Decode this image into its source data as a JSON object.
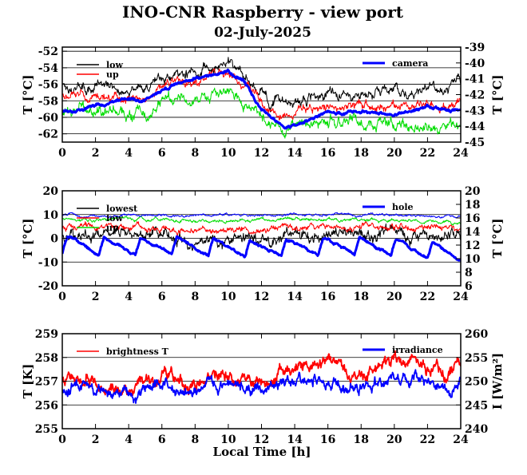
{
  "title": "INO-CNR Raspberry - view port",
  "subtitle": "02-July-2025",
  "xlabel": "Local Time [h]",
  "colors": {
    "black": "#000000",
    "red": "#ff0000",
    "green": "#00dd00",
    "blue": "#0000ff"
  },
  "chart_data": [
    {
      "type": "line",
      "xlim": [
        0,
        24
      ],
      "xticks": [
        "0",
        "2",
        "4",
        "6",
        "8",
        "10",
        "12",
        "14",
        "16",
        "18",
        "20",
        "22",
        "24"
      ],
      "ylabel": "T [°C]",
      "ylim": [
        -63,
        -51.5
      ],
      "yticks": [
        "-62",
        "-60",
        "-58",
        "-56",
        "-54",
        "-52"
      ],
      "y2label": "T [°C]",
      "y2lim": [
        -45,
        -39
      ],
      "y2ticks": [
        "-45",
        "-44",
        "-43",
        "-42",
        "-41",
        "-40",
        "-39"
      ],
      "grid": true,
      "series": [
        {
          "name": "low",
          "color": "black",
          "axis": "left",
          "width": 1,
          "noise": 0.7,
          "x": [
            0,
            1,
            2,
            3,
            4,
            5,
            6,
            7,
            8,
            9,
            10,
            11,
            12,
            12.5,
            13,
            13.5,
            14,
            15,
            16,
            17,
            18,
            19,
            20,
            21,
            22,
            23,
            24
          ],
          "y": [
            -56,
            -56.5,
            -56.2,
            -56.3,
            -56.5,
            -56.5,
            -55.5,
            -54.5,
            -54.3,
            -53.8,
            -53.5,
            -55,
            -56.5,
            -57.8,
            -58,
            -58.3,
            -58,
            -57.5,
            -57,
            -57,
            -57.2,
            -57,
            -57,
            -56.8,
            -56.5,
            -56.5,
            -56
          ]
        },
        {
          "name": "up",
          "color": "red",
          "axis": "left",
          "width": 1,
          "noise": 0.6,
          "x": [
            0,
            1,
            2,
            3,
            4,
            5,
            6,
            7,
            8,
            9,
            10,
            11,
            12,
            12.5,
            13,
            13.5,
            14,
            15,
            16,
            17,
            18,
            19,
            20,
            21,
            22,
            23,
            24
          ],
          "y": [
            -57.5,
            -57.5,
            -57.5,
            -57.8,
            -58,
            -58,
            -56.5,
            -55.5,
            -55.5,
            -55,
            -54.8,
            -56,
            -58,
            -59,
            -59.5,
            -59.8,
            -59.5,
            -59,
            -58.5,
            -58.5,
            -58.5,
            -58.7,
            -58.5,
            -58.5,
            -58.3,
            -58.5,
            -58.3
          ]
        },
        {
          "name": "",
          "color": "green",
          "axis": "left",
          "width": 1,
          "noise": 0.8,
          "x": [
            0,
            1,
            2,
            3,
            4,
            5,
            6,
            7,
            8,
            9,
            10,
            11,
            12,
            12.5,
            13,
            13.5,
            14,
            15,
            16,
            17,
            18,
            19,
            20,
            21,
            22,
            23,
            24
          ],
          "y": [
            -59.3,
            -59.3,
            -59,
            -59.3,
            -59.5,
            -59.7,
            -58.5,
            -57.5,
            -57.8,
            -57.5,
            -57,
            -58.3,
            -59.5,
            -60.5,
            -61,
            -61.5,
            -61.3,
            -60.8,
            -60.3,
            -60.5,
            -60.5,
            -60.8,
            -60.8,
            -60.7,
            -60.8,
            -61.3,
            -61
          ]
        },
        {
          "name": "camera",
          "color": "blue",
          "axis": "right",
          "width": 3,
          "noise": 0.1,
          "x": [
            0,
            1,
            2,
            3,
            4,
            5,
            6,
            7,
            8,
            9,
            10,
            11,
            12,
            13,
            13.5,
            14,
            15,
            16,
            17,
            18,
            19,
            20,
            21,
            22,
            23,
            24
          ],
          "y": [
            -43.1,
            -42.9,
            -42.7,
            -42.5,
            -42.3,
            -42.4,
            -41.8,
            -41.2,
            -41.0,
            -40.7,
            -40.5,
            -41.3,
            -43.0,
            -43.9,
            -44.1,
            -44.0,
            -43.5,
            -43.1,
            -43.2,
            -43.0,
            -43.2,
            -43.3,
            -43.0,
            -42.8,
            -43.0,
            -43.0
          ]
        }
      ],
      "legend": [
        {
          "label": "low",
          "color": "black",
          "position": "top-left"
        },
        {
          "label": "up",
          "color": "red",
          "position": "top-left"
        },
        {
          "label": "camera",
          "color": "blue",
          "position": "top-right"
        }
      ]
    },
    {
      "type": "line",
      "xlim": [
        0,
        24
      ],
      "xticks": [
        "0",
        "2",
        "4",
        "6",
        "8",
        "10",
        "12",
        "14",
        "16",
        "18",
        "20",
        "22",
        "24"
      ],
      "ylabel": "T [°C]",
      "ylim": [
        -20,
        20
      ],
      "yticks": [
        "-20",
        "-10",
        "0",
        "10",
        "20"
      ],
      "y2label": "T [°C]",
      "y2lim": [
        6,
        20
      ],
      "y2ticks": [
        "6",
        "8",
        "10",
        "12",
        "14",
        "16",
        "18",
        "20"
      ],
      "grid": true,
      "series": [
        {
          "name": "lowest",
          "color": "black",
          "axis": "left",
          "width": 1,
          "noise": 2.8,
          "cycle": 0,
          "x": [
            0,
            2,
            4,
            6,
            7,
            8,
            9,
            10,
            11,
            12,
            14,
            16,
            18,
            20,
            22,
            24
          ],
          "y": [
            3,
            1,
            2,
            1,
            -1,
            -3,
            -2,
            -2,
            -1,
            -1,
            1,
            1,
            1,
            1,
            1,
            0
          ]
        },
        {
          "name": "low",
          "color": "red",
          "axis": "left",
          "width": 1,
          "noise": 1.5,
          "cycle": 0,
          "x": [
            0,
            2,
            4,
            6,
            8,
            10,
            12,
            14,
            16,
            18,
            20,
            22,
            24
          ],
          "y": [
            5,
            4.5,
            4.5,
            4,
            3.5,
            3.5,
            4,
            5,
            5,
            5,
            4.5,
            5,
            3.5
          ]
        },
        {
          "name": "up",
          "color": "green",
          "axis": "left",
          "width": 1,
          "noise": 0.8,
          "cycle": 0,
          "x": [
            0,
            2,
            4,
            6,
            8,
            10,
            12,
            14,
            16,
            18,
            20,
            22,
            24
          ],
          "y": [
            8.5,
            8,
            8.5,
            8,
            7.5,
            7.5,
            7.5,
            8,
            8,
            8,
            7.5,
            7.5,
            6.5
          ]
        },
        {
          "name": "",
          "color": "blue",
          "axis": "left",
          "width": 1,
          "noise": 0.6,
          "cycle": 0,
          "x": [
            0,
            2,
            4,
            6,
            8,
            10,
            12,
            14,
            16,
            18,
            20,
            22,
            24
          ],
          "y": [
            10,
            9.5,
            10,
            9.5,
            9.5,
            10,
            9.5,
            10,
            10,
            9.5,
            10,
            9.5,
            9
          ]
        },
        {
          "name": "hole",
          "color": "blue",
          "axis": "right",
          "width": 3,
          "noise": 0.2,
          "cycle": 1,
          "x": [
            0,
            3,
            6,
            9,
            12,
            15,
            18,
            21,
            23,
            24
          ],
          "y": [
            10.8,
            10.5,
            10.6,
            10.4,
            10.2,
            10.5,
            10.6,
            10.3,
            9.6,
            9.3
          ]
        }
      ],
      "legend": [
        {
          "label": "lowest",
          "color": "black",
          "position": "top-left"
        },
        {
          "label": "low",
          "color": "red",
          "position": "top-left"
        },
        {
          "label": "up",
          "color": "green",
          "position": "top-left"
        },
        {
          "label": "hole",
          "color": "blue",
          "position": "top-right"
        }
      ]
    },
    {
      "type": "line",
      "xlim": [
        0,
        24
      ],
      "xticks": [
        "0",
        "2",
        "4",
        "6",
        "8",
        "10",
        "12",
        "14",
        "16",
        "18",
        "20",
        "22",
        "24"
      ],
      "ylabel": "T [K]",
      "ylim": [
        255,
        259
      ],
      "yticks": [
        "255",
        "256",
        "257",
        "258",
        "259"
      ],
      "y2label": "I [W/m²]",
      "y2lim": [
        240,
        260
      ],
      "y2ticks": [
        "240",
        "245",
        "250",
        "255",
        "260"
      ],
      "grid": true,
      "series": [
        {
          "name": "brightness T",
          "color": "red",
          "axis": "left",
          "width": 1.8,
          "noise": 0.3,
          "x": [
            0,
            1,
            2,
            3,
            4,
            5,
            6,
            7,
            8,
            9,
            10,
            11,
            12,
            13,
            14,
            15,
            16,
            17,
            18,
            19,
            20,
            21,
            22,
            23,
            24
          ],
          "y": [
            257.0,
            257.2,
            257.1,
            256.9,
            256.7,
            256.8,
            257.2,
            256.9,
            256.7,
            257.3,
            257.2,
            257.0,
            256.9,
            257.3,
            257.6,
            257.7,
            257.8,
            257.5,
            257.1,
            257.6,
            257.8,
            257.7,
            257.6,
            257.3,
            257.5
          ]
        },
        {
          "name": "irradiance",
          "color": "blue",
          "axis": "right",
          "width": 1.8,
          "noise": 1.4,
          "x": [
            0,
            1,
            2,
            3,
            4,
            5,
            6,
            7,
            8,
            9,
            10,
            11,
            12,
            13,
            14,
            15,
            16,
            17,
            18,
            19,
            20,
            21,
            22,
            23,
            24
          ],
          "y": [
            248.3,
            249,
            248.5,
            248,
            247,
            247.6,
            249,
            248,
            247.5,
            249.2,
            249.1,
            248.5,
            248.2,
            249.2,
            249.8,
            250,
            250.2,
            249.5,
            248.5,
            249.8,
            250.2,
            250,
            249.5,
            248.8,
            249.3
          ]
        }
      ],
      "legend": [
        {
          "label": "brightness T",
          "color": "red",
          "position": "top-left"
        },
        {
          "label": "irradiance",
          "color": "blue",
          "position": "top-right"
        }
      ]
    }
  ]
}
